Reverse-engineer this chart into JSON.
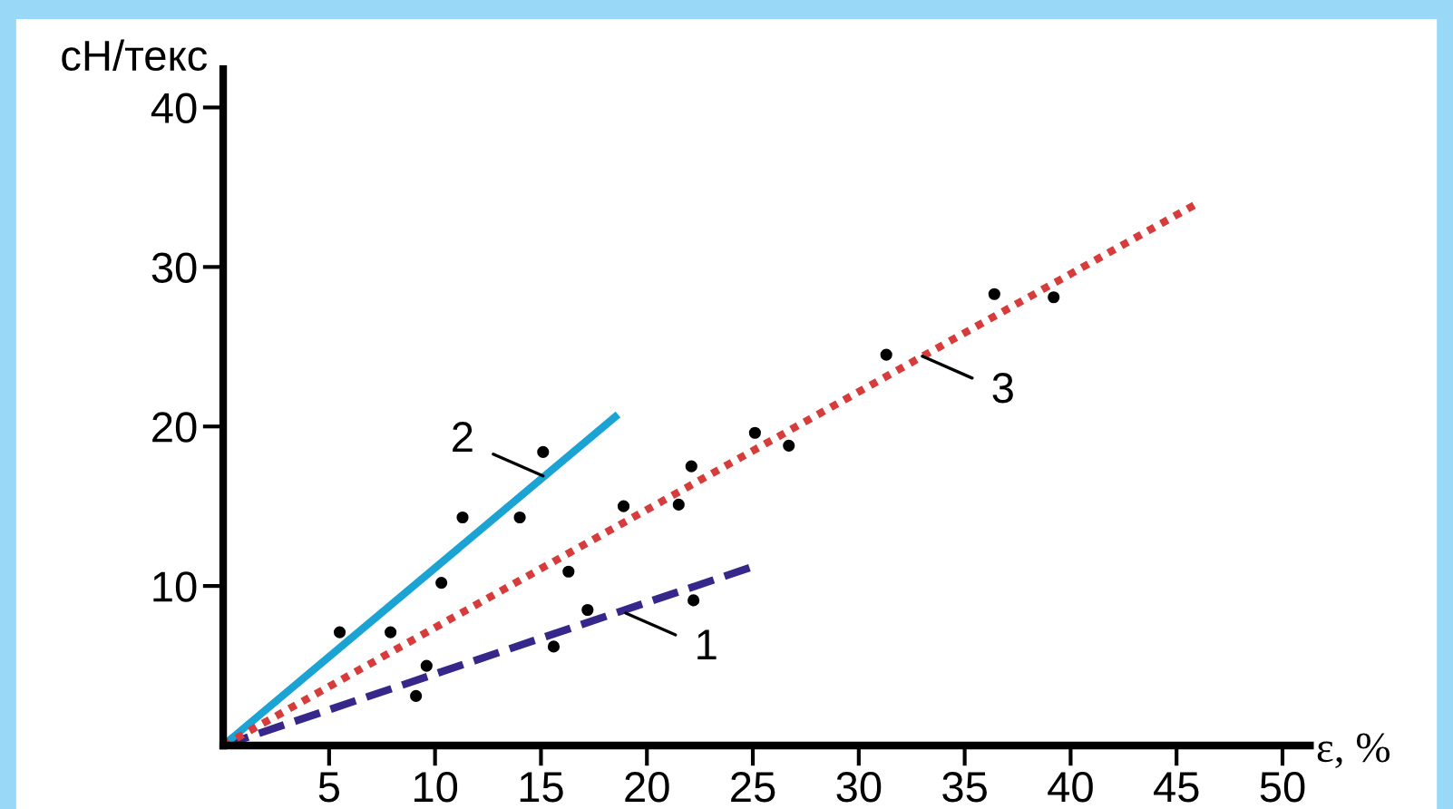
{
  "chart_data": {
    "type": "scatter",
    "xlabel": "ε, %",
    "ylabel": "сН/текс",
    "xlim": [
      0,
      51.3
    ],
    "ylim": [
      0,
      42.4
    ],
    "xticks": [
      5,
      10,
      15,
      20,
      25,
      30,
      35,
      40,
      45,
      50
    ],
    "yticks": [
      10,
      20,
      30,
      40
    ],
    "grid": false,
    "legend": false,
    "marker": "circle",
    "series": [
      {
        "color": "#000000",
        "x": [
          5.5,
          7.9,
          9.1,
          9.6,
          10.3,
          11.3,
          14.0,
          15.1,
          15.6,
          16.3,
          17.2,
          18.9,
          21.5,
          22.1,
          22.2,
          25.1,
          26.7,
          31.3,
          36.4,
          39.2
        ],
        "values": [
          7.1,
          7.1,
          3.1,
          5.0,
          10.2,
          14.3,
          14.3,
          18.4,
          6.2,
          10.9,
          8.5,
          15.0,
          15.1,
          17.5,
          9.1,
          19.6,
          18.8,
          24.5,
          28.3,
          28.1
        ]
      },
      {
        "type": "line",
        "color": "#35288a",
        "line_style": "dashed",
        "marker": "none",
        "x": [
          0,
          25.2
        ],
        "values": [
          0,
          11.3
        ]
      },
      {
        "type": "line",
        "color": "#1ba3d3",
        "line_style": "solid",
        "marker": "none",
        "x": [
          0,
          18.5
        ],
        "values": [
          0,
          20.6
        ]
      },
      {
        "type": "line",
        "color": "#d63c3c",
        "line_style": "dotted",
        "marker": "none",
        "x": [
          0,
          46.0
        ],
        "values": [
          0,
          34.0
        ]
      }
    ],
    "annotations": [
      {
        "text": "1",
        "x": 19,
        "y": 8.3
      },
      {
        "text": "2",
        "x": 15.1,
        "y": 16.9
      },
      {
        "text": "3",
        "x": 33,
        "y": 24.4
      }
    ]
  }
}
